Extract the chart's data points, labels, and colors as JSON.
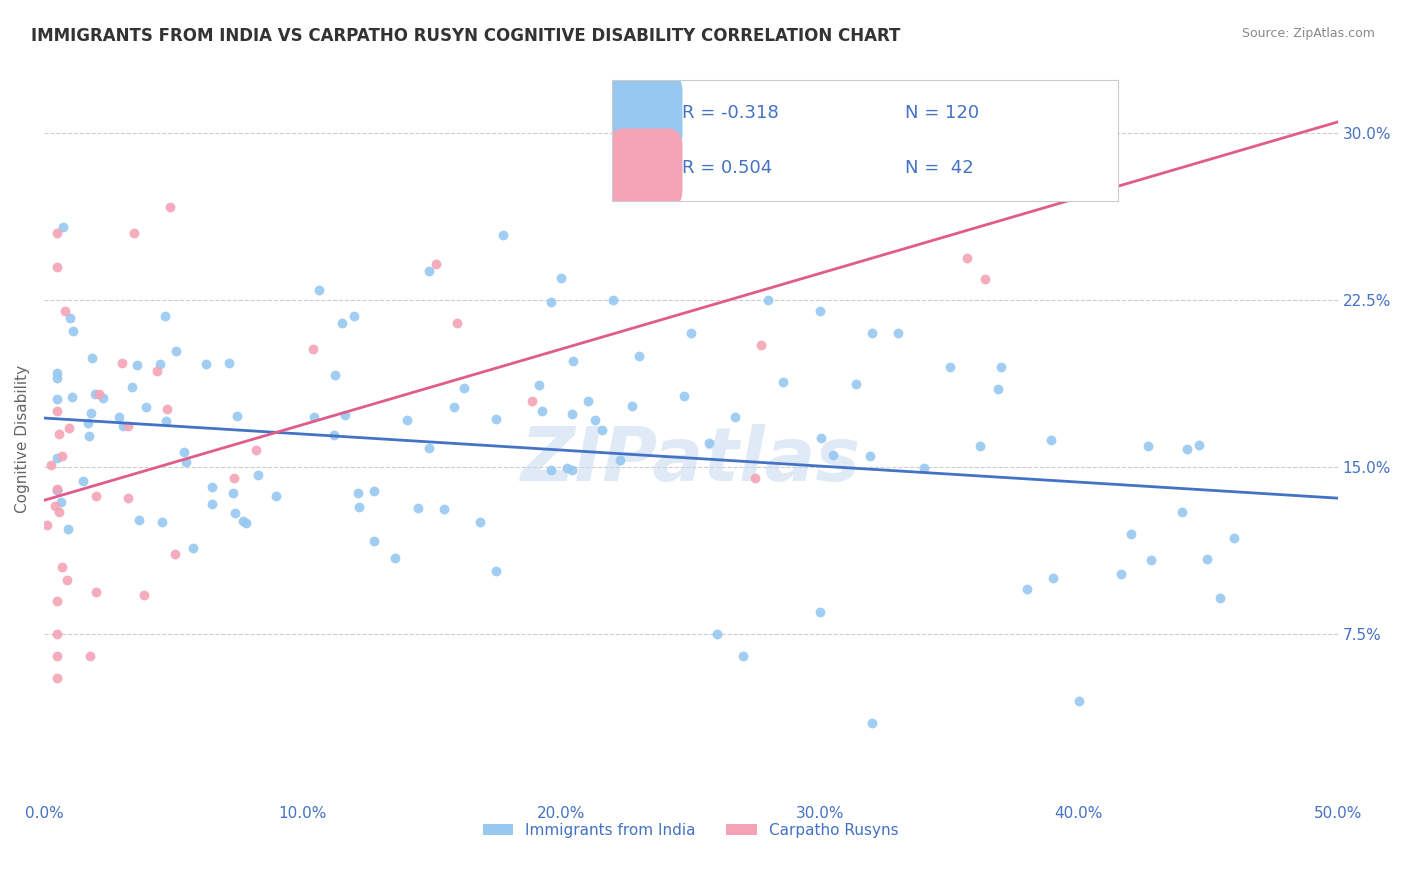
{
  "title": "IMMIGRANTS FROM INDIA VS CARPATHO RUSYN COGNITIVE DISABILITY CORRELATION CHART",
  "source": "Source: ZipAtlas.com",
  "ylabel": "Cognitive Disability",
  "xlim": [
    0.0,
    0.5
  ],
  "ylim": [
    0.0,
    0.325
  ],
  "xticklabels": [
    "0.0%",
    "10.0%",
    "20.0%",
    "30.0%",
    "40.0%",
    "50.0%"
  ],
  "yticks_right": [
    0.075,
    0.15,
    0.225,
    0.3
  ],
  "yticklabels_right": [
    "7.5%",
    "15.0%",
    "22.5%",
    "30.0%"
  ],
  "blue_color": "#96c8f0",
  "pink_color": "#f4a3b5",
  "blue_line_color": "#4472c4",
  "pink_line_color": "#e05c8a",
  "legend_blue_label": "Immigrants from India",
  "legend_pink_label": "Carpatho Rusyns",
  "R_blue": -0.318,
  "N_blue": 120,
  "R_pink": 0.504,
  "N_pink": 42,
  "blue_slope": -0.072,
  "blue_intercept": 0.172,
  "pink_slope": 0.34,
  "pink_intercept": 0.135,
  "watermark": "ZIPatlas",
  "background_color": "#ffffff",
  "grid_color": "#cccccc",
  "title_color": "#333333",
  "axis_label_color": "#4472c4"
}
